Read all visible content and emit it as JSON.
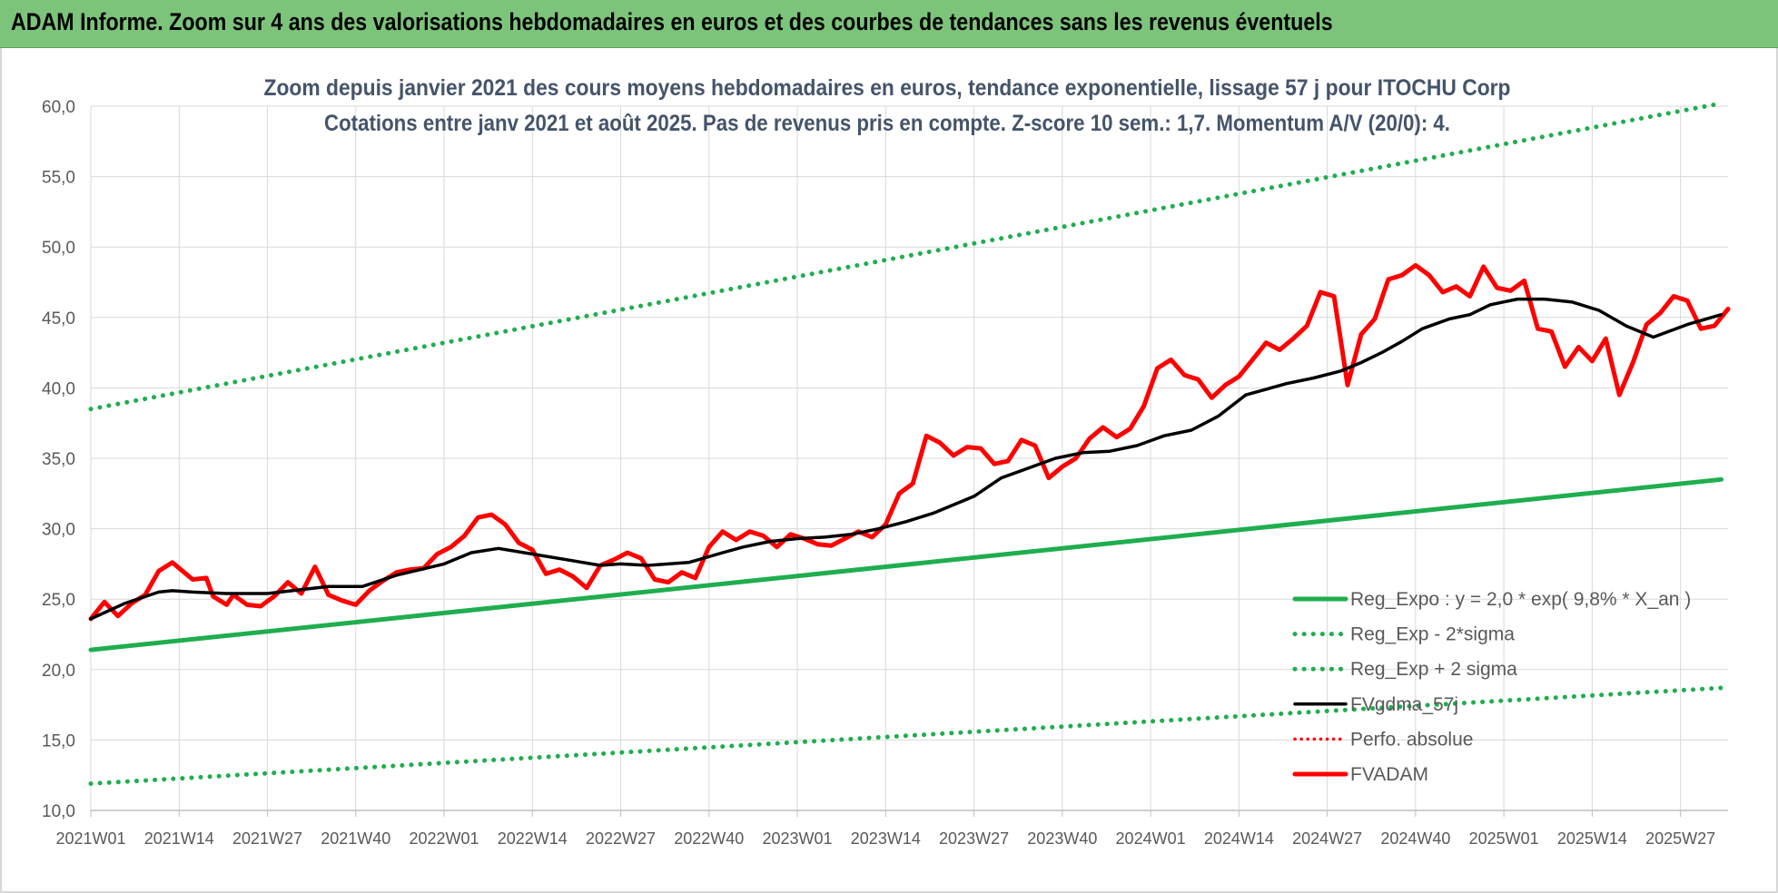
{
  "banner": {
    "title": "ADAM Informe. Zoom sur 4 ans des valorisations hebdomadaires en euros et des courbes de tendances sans les revenus éventuels"
  },
  "chart_data": {
    "type": "line",
    "title_line1": "Zoom depuis janvier 2021 des cours moyens hebdomadaires en euros, tendance exponentielle, lissage 57 j pour ITOCHU Corp",
    "title_line2": "Cotations entre janv 2021 et août 2025.  Pas de revenus pris en compte. Z-score 10 sem.: 1,7. Momentum A/V (20/0): 4.",
    "ylim": [
      10,
      60
    ],
    "yticks": [
      "10,0",
      "15,0",
      "20,0",
      "25,0",
      "30,0",
      "35,0",
      "40,0",
      "45,0",
      "50,0",
      "55,0",
      "60,0"
    ],
    "xticks": [
      "2021W01",
      "2021W14",
      "2021W27",
      "2021W40",
      "2022W01",
      "2022W14",
      "2022W27",
      "2022W40",
      "2023W01",
      "2023W14",
      "2023W27",
      "2023W40",
      "2024W01",
      "2024W14",
      "2024W27",
      "2024W40",
      "2025W01",
      "2025W14",
      "2025W27"
    ],
    "grid": true,
    "legend_position": "bottom-right",
    "n_weeks": 242,
    "colors": {
      "green": "#1fae4f",
      "black": "#000000",
      "red": "#ff0000"
    },
    "series": [
      {
        "name": "Reg_Expo : y = 2,0 * exp( 9,8% *  X_an )",
        "style": "solid",
        "color": "#1fae4f",
        "x": [
          0,
          240
        ],
        "values": [
          21.4,
          33.5
        ]
      },
      {
        "name": "Reg_Exp - 2*sigma",
        "style": "dotted",
        "color": "#1fae4f",
        "x": [
          0,
          240
        ],
        "values": [
          11.9,
          18.7
        ]
      },
      {
        "name": "Reg_Exp + 2 sigma",
        "style": "dotted",
        "color": "#1fae4f",
        "x": [
          0,
          240
        ],
        "values": [
          38.5,
          60.2
        ]
      },
      {
        "name": "FVgdma_57j",
        "style": "solid",
        "color": "#000000",
        "x": [
          0,
          5,
          10,
          12,
          15,
          20,
          26,
          35,
          40,
          45,
          52,
          56,
          60,
          65,
          70,
          75,
          78,
          82,
          88,
          93,
          96,
          100,
          104,
          108,
          112,
          116,
          120,
          124,
          130,
          134,
          138,
          142,
          146,
          150,
          154,
          158,
          162,
          166,
          170,
          176,
          180,
          184,
          187,
          190,
          193,
          196,
          200,
          203,
          206,
          210,
          214,
          218,
          222,
          226,
          230,
          235,
          240
        ],
        "values": [
          23.6,
          24.7,
          25.5,
          25.6,
          25.5,
          25.4,
          25.4,
          25.9,
          25.9,
          26.7,
          27.5,
          28.3,
          28.6,
          28.2,
          27.8,
          27.4,
          27.5,
          27.4,
          27.6,
          28.3,
          28.7,
          29.1,
          29.3,
          29.4,
          29.6,
          30.0,
          30.5,
          31.1,
          32.3,
          33.6,
          34.3,
          35.0,
          35.4,
          35.5,
          35.9,
          36.6,
          37.0,
          38.0,
          39.5,
          40.3,
          40.7,
          41.2,
          41.8,
          42.5,
          43.3,
          44.2,
          44.9,
          45.2,
          45.9,
          46.3,
          46.3,
          46.1,
          45.5,
          44.4,
          43.6,
          44.5,
          45.2
        ]
      },
      {
        "name": "Perfo. absolue",
        "style": "dotted",
        "color": "#ff0000",
        "x": [],
        "values": []
      },
      {
        "name": "FVADAM",
        "style": "solid",
        "color": "#ff0000",
        "x": [
          0,
          2,
          4,
          6,
          8,
          10,
          12,
          13,
          15,
          17,
          18,
          20,
          21,
          23,
          25,
          27,
          29,
          31,
          33,
          35,
          37,
          39,
          41,
          43,
          45,
          47,
          49,
          51,
          53,
          55,
          57,
          59,
          61,
          63,
          65,
          67,
          69,
          71,
          73,
          75,
          77,
          79,
          81,
          83,
          85,
          87,
          89,
          91,
          93,
          95,
          97,
          99,
          101,
          103,
          105,
          107,
          109,
          111,
          113,
          115,
          117,
          119,
          121,
          123,
          125,
          127,
          129,
          131,
          133,
          135,
          137,
          139,
          141,
          143,
          145,
          147,
          149,
          151,
          153,
          155,
          157,
          159,
          161,
          163,
          165,
          167,
          169,
          171,
          173,
          175,
          177,
          179,
          181,
          183,
          185,
          187,
          189,
          191,
          193,
          195,
          197,
          199,
          201,
          203,
          205,
          207,
          209,
          211,
          213,
          215,
          217,
          219,
          221,
          223,
          225,
          227,
          229,
          231,
          233,
          235,
          237,
          239,
          241
        ],
        "values": [
          23.6,
          24.8,
          23.8,
          24.7,
          25.3,
          27.0,
          27.6,
          27.2,
          26.4,
          26.5,
          25.2,
          24.6,
          25.3,
          24.6,
          24.5,
          25.2,
          26.2,
          25.4,
          27.3,
          25.3,
          24.9,
          24.6,
          25.6,
          26.3,
          26.9,
          27.1,
          27.2,
          28.2,
          28.7,
          29.5,
          30.8,
          31.0,
          30.3,
          29.0,
          28.5,
          26.8,
          27.1,
          26.6,
          25.8,
          27.4,
          27.8,
          28.3,
          27.9,
          26.4,
          26.2,
          26.9,
          26.5,
          28.7,
          29.8,
          29.2,
          29.8,
          29.5,
          28.7,
          29.6,
          29.3,
          28.9,
          28.8,
          29.3,
          29.8,
          29.4,
          30.3,
          32.5,
          33.2,
          36.6,
          36.1,
          35.2,
          35.8,
          35.7,
          34.6,
          34.8,
          36.3,
          35.9,
          33.6,
          34.4,
          35.0,
          36.4,
          37.2,
          36.5,
          37.1,
          38.7,
          41.4,
          42.0,
          40.9,
          40.6,
          39.3,
          40.2,
          40.8,
          42.0,
          43.2,
          42.7,
          43.5,
          44.4,
          46.8,
          46.5,
          40.2,
          43.8,
          44.9,
          47.7,
          48.0,
          48.7,
          48.0,
          46.8,
          47.2,
          46.5,
          48.6,
          47.1,
          46.9,
          47.6,
          44.2,
          44.0,
          41.5,
          42.9,
          41.9,
          43.5,
          39.5,
          41.8,
          44.5,
          45.3,
          46.5,
          46.2,
          44.2,
          44.4,
          45.6
        ]
      }
    ]
  }
}
